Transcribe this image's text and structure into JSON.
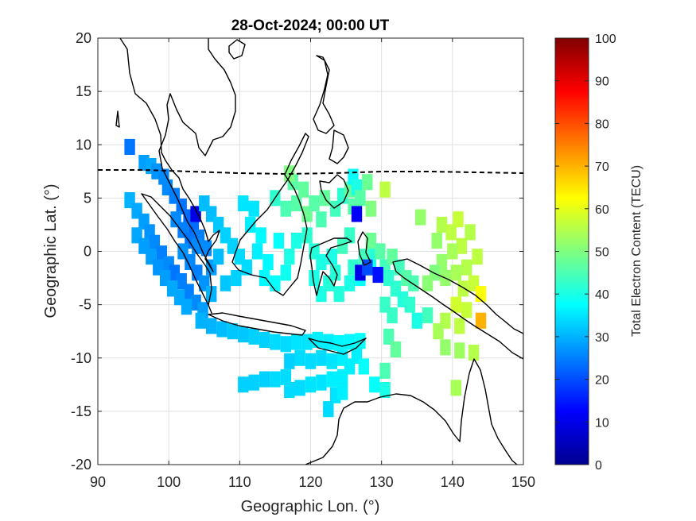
{
  "chart_data": {
    "type": "heatmap",
    "title": "28-Oct-2024; 00:00 UT",
    "xlabel": "Geographic Lon. (°)",
    "ylabel": "Geographic Lat. (°)",
    "xlim": [
      90,
      150
    ],
    "ylim": [
      -20,
      20
    ],
    "xticks": [
      "90",
      "100",
      "110",
      "120",
      "130",
      "140",
      "150"
    ],
    "yticks": [
      "20",
      "15",
      "10",
      "5",
      "0",
      "-5",
      "-10",
      "-15",
      "-20"
    ],
    "grid": true,
    "colorbar": {
      "label": "Total Electron Content (TECU)",
      "range": [
        0,
        100
      ],
      "ticks": [
        "100",
        "90",
        "80",
        "70",
        "60",
        "50",
        "40",
        "30",
        "20",
        "10",
        "0"
      ],
      "colormap": "jet"
    },
    "cell_size_deg": [
      1.5,
      1.5
    ],
    "cells": [
      [
        94.5,
        9.8,
        24
      ],
      [
        96.5,
        8.3,
        28
      ],
      [
        97.5,
        8.0,
        29
      ],
      [
        98.3,
        7.5,
        27
      ],
      [
        99.3,
        7.0,
        26
      ],
      [
        99.8,
        6.0,
        26
      ],
      [
        100.8,
        5.2,
        25
      ],
      [
        101.8,
        4.2,
        24
      ],
      [
        102.8,
        3.2,
        23
      ],
      [
        103.5,
        2.3,
        23
      ],
      [
        103.8,
        3.5,
        10
      ],
      [
        104.3,
        1.3,
        25
      ],
      [
        105.3,
        0.3,
        26
      ],
      [
        94.5,
        4.8,
        30
      ],
      [
        95.5,
        3.8,
        29
      ],
      [
        96.5,
        2.8,
        28
      ],
      [
        97.3,
        1.8,
        27
      ],
      [
        98.0,
        0.8,
        26
      ],
      [
        99.0,
        -0.2,
        25
      ],
      [
        100.0,
        -1.2,
        26
      ],
      [
        100.8,
        -2.0,
        24
      ],
      [
        101.8,
        -2.8,
        25
      ],
      [
        102.8,
        -3.8,
        25
      ],
      [
        103.8,
        -4.8,
        26
      ],
      [
        104.8,
        -5.5,
        28
      ],
      [
        95.5,
        1.5,
        29
      ],
      [
        96.5,
        0.5,
        28
      ],
      [
        97.5,
        -0.5,
        28
      ],
      [
        98.5,
        -1.5,
        27
      ],
      [
        99.5,
        -2.5,
        28
      ],
      [
        100.5,
        -3.5,
        29
      ],
      [
        101.5,
        -4.3,
        29
      ],
      [
        102.5,
        -5.2,
        29
      ],
      [
        101.0,
        3.0,
        26
      ],
      [
        102.0,
        2.0,
        25
      ],
      [
        103.0,
        1.0,
        24
      ],
      [
        102.0,
        0.0,
        27
      ],
      [
        103.0,
        -1.0,
        26
      ],
      [
        104.0,
        -2.0,
        25
      ],
      [
        105.0,
        -3.0,
        27
      ],
      [
        106.0,
        -4.0,
        30
      ],
      [
        104.0,
        0.5,
        26
      ],
      [
        106.0,
        -1.5,
        28
      ],
      [
        107.0,
        -0.5,
        31
      ],
      [
        105.0,
        4.5,
        31
      ],
      [
        106.0,
        3.5,
        31
      ],
      [
        107.0,
        2.5,
        32
      ],
      [
        108.0,
        1.5,
        33
      ],
      [
        109.0,
        0.5,
        33
      ],
      [
        110.0,
        -0.5,
        34
      ],
      [
        111.0,
        -1.5,
        34
      ],
      [
        109.5,
        -2.5,
        33
      ],
      [
        108.0,
        -3.0,
        32
      ],
      [
        110.5,
        4.5,
        35
      ],
      [
        112.0,
        4.0,
        35
      ],
      [
        111.5,
        2.5,
        36
      ],
      [
        113.0,
        1.5,
        37
      ],
      [
        112.5,
        0.0,
        36
      ],
      [
        114.0,
        -1.0,
        37
      ],
      [
        113.5,
        -2.5,
        37
      ],
      [
        115.0,
        -3.0,
        38
      ],
      [
        116.5,
        -2.0,
        39
      ],
      [
        117.0,
        -0.5,
        40
      ],
      [
        118.0,
        1.0,
        40
      ],
      [
        115.5,
        1.0,
        38
      ],
      [
        115.0,
        5.0,
        42
      ],
      [
        116.5,
        4.0,
        45
      ],
      [
        118.0,
        4.5,
        46
      ],
      [
        119.5,
        3.5,
        48
      ],
      [
        117.5,
        6.5,
        46
      ],
      [
        117.0,
        7.3,
        50
      ],
      [
        119.0,
        5.8,
        47
      ],
      [
        120.5,
        4.5,
        46
      ],
      [
        122.0,
        5.0,
        47
      ],
      [
        121.5,
        3.0,
        45
      ],
      [
        123.5,
        4.0,
        44
      ],
      [
        124.5,
        5.2,
        42
      ],
      [
        125.5,
        5.8,
        47
      ],
      [
        126.0,
        4.2,
        46
      ],
      [
        119.5,
        1.5,
        42
      ],
      [
        120.5,
        0.0,
        41
      ],
      [
        121.5,
        -1.0,
        40
      ],
      [
        120.5,
        -2.5,
        40
      ],
      [
        121.5,
        -4.0,
        40
      ],
      [
        122.5,
        -3.0,
        41
      ],
      [
        123.5,
        -2.0,
        41
      ],
      [
        123.0,
        -0.5,
        40
      ],
      [
        124.5,
        0.5,
        44
      ],
      [
        125.5,
        1.5,
        43
      ],
      [
        124.0,
        -4.0,
        41
      ],
      [
        125.5,
        -3.0,
        40
      ],
      [
        126.0,
        -1.5,
        42
      ],
      [
        127.0,
        -2.5,
        38
      ],
      [
        127.5,
        -0.5,
        44
      ],
      [
        128.5,
        -1.5,
        39
      ],
      [
        129.0,
        0.0,
        41
      ],
      [
        126.0,
        7.0,
        38
      ],
      [
        126.5,
        6.0,
        40
      ],
      [
        127.0,
        5.0,
        46
      ],
      [
        126.5,
        3.5,
        12
      ],
      [
        128.0,
        6.5,
        48
      ],
      [
        128.5,
        4.0,
        50
      ],
      [
        130.5,
        5.8,
        56
      ],
      [
        128.5,
        1.0,
        48
      ],
      [
        129.8,
        0.0,
        46
      ],
      [
        130.5,
        -1.5,
        44
      ],
      [
        131.5,
        -0.5,
        47
      ],
      [
        131.0,
        -2.5,
        42
      ],
      [
        132.5,
        -1.5,
        44
      ],
      [
        132.0,
        -3.5,
        42
      ],
      [
        133.5,
        -2.5,
        46
      ],
      [
        133.0,
        -4.5,
        41
      ],
      [
        134.5,
        -3.0,
        45
      ],
      [
        134.0,
        -5.0,
        42
      ],
      [
        135.0,
        -6.5,
        40
      ],
      [
        136.5,
        -6.0,
        44
      ],
      [
        130.5,
        -5.0,
        43
      ],
      [
        131.5,
        -6.0,
        43
      ],
      [
        127.0,
        -2.0,
        10
      ],
      [
        129.5,
        -2.2,
        14
      ],
      [
        128.0,
        -1.5,
        20
      ],
      [
        135.5,
        3.2,
        52
      ],
      [
        137.8,
        1.0,
        52
      ],
      [
        138.5,
        2.5,
        55
      ],
      [
        139.8,
        1.8,
        56
      ],
      [
        140.8,
        3.0,
        57
      ],
      [
        141.3,
        0.5,
        56
      ],
      [
        142.5,
        1.8,
        55
      ],
      [
        140.0,
        0.0,
        54
      ],
      [
        138.5,
        -1.0,
        52
      ],
      [
        137.5,
        -2.0,
        50
      ],
      [
        139.0,
        -2.5,
        52
      ],
      [
        140.5,
        -2.0,
        54
      ],
      [
        142.0,
        -1.5,
        55
      ],
      [
        143.5,
        -0.5,
        56
      ],
      [
        143.0,
        -3.0,
        57
      ],
      [
        144.0,
        -4.0,
        62
      ],
      [
        141.5,
        -3.5,
        56
      ],
      [
        140.5,
        -5.0,
        58
      ],
      [
        142.0,
        -5.5,
        57
      ],
      [
        141.0,
        -7.0,
        56
      ],
      [
        139.0,
        -6.5,
        55
      ],
      [
        138.0,
        -7.5,
        54
      ],
      [
        139.0,
        -9.0,
        52
      ],
      [
        136.5,
        -3.0,
        51
      ],
      [
        144.0,
        -6.5,
        70
      ],
      [
        141.0,
        -9.3,
        53
      ],
      [
        143.0,
        -9.5,
        55
      ],
      [
        131.0,
        -8.0,
        45
      ],
      [
        132.0,
        -9.2,
        47
      ],
      [
        130.5,
        -11.2,
        45
      ],
      [
        140.5,
        -12.8,
        54
      ],
      [
        129.0,
        -12.5,
        38
      ],
      [
        130.5,
        -13.0,
        40
      ],
      [
        104.5,
        -6.5,
        30
      ],
      [
        106.0,
        -7.0,
        30
      ],
      [
        107.5,
        -7.3,
        31
      ],
      [
        109.0,
        -7.5,
        32
      ],
      [
        110.5,
        -7.8,
        32
      ],
      [
        112.0,
        -8.0,
        33
      ],
      [
        113.5,
        -8.3,
        33
      ],
      [
        115.0,
        -8.5,
        34
      ],
      [
        116.5,
        -8.7,
        34
      ],
      [
        118.0,
        -8.5,
        35
      ],
      [
        119.5,
        -8.5,
        35
      ],
      [
        121.0,
        -8.3,
        36
      ],
      [
        122.5,
        -8.5,
        36
      ],
      [
        124.0,
        -8.6,
        37
      ],
      [
        125.5,
        -8.5,
        37
      ],
      [
        127.0,
        -8.4,
        38
      ],
      [
        126.5,
        -9.8,
        36
      ],
      [
        124.5,
        -10.0,
        36
      ],
      [
        123.0,
        -10.3,
        35
      ],
      [
        121.5,
        -10.0,
        34
      ],
      [
        120.0,
        -10.3,
        34
      ],
      [
        118.5,
        -10.0,
        34
      ],
      [
        117.0,
        -10.3,
        33
      ],
      [
        110.5,
        -12.5,
        33
      ],
      [
        112.0,
        -12.3,
        33
      ],
      [
        113.5,
        -12.0,
        33
      ],
      [
        115.0,
        -12.0,
        34
      ],
      [
        116.5,
        -11.8,
        34
      ],
      [
        117.0,
        -13.0,
        34
      ],
      [
        118.5,
        -12.8,
        34
      ],
      [
        120.0,
        -12.5,
        35
      ],
      [
        121.5,
        -12.3,
        35
      ],
      [
        123.0,
        -12.0,
        36
      ],
      [
        124.5,
        -11.8,
        36
      ],
      [
        125.5,
        -10.8,
        36
      ],
      [
        123.5,
        -13.5,
        35
      ],
      [
        122.5,
        -14.8,
        34
      ],
      [
        124.5,
        -13.2,
        36
      ],
      [
        127.5,
        -10.8,
        38
      ]
    ],
    "annotations": [
      "dashed magnetic dip equator near 7.5°N"
    ]
  }
}
